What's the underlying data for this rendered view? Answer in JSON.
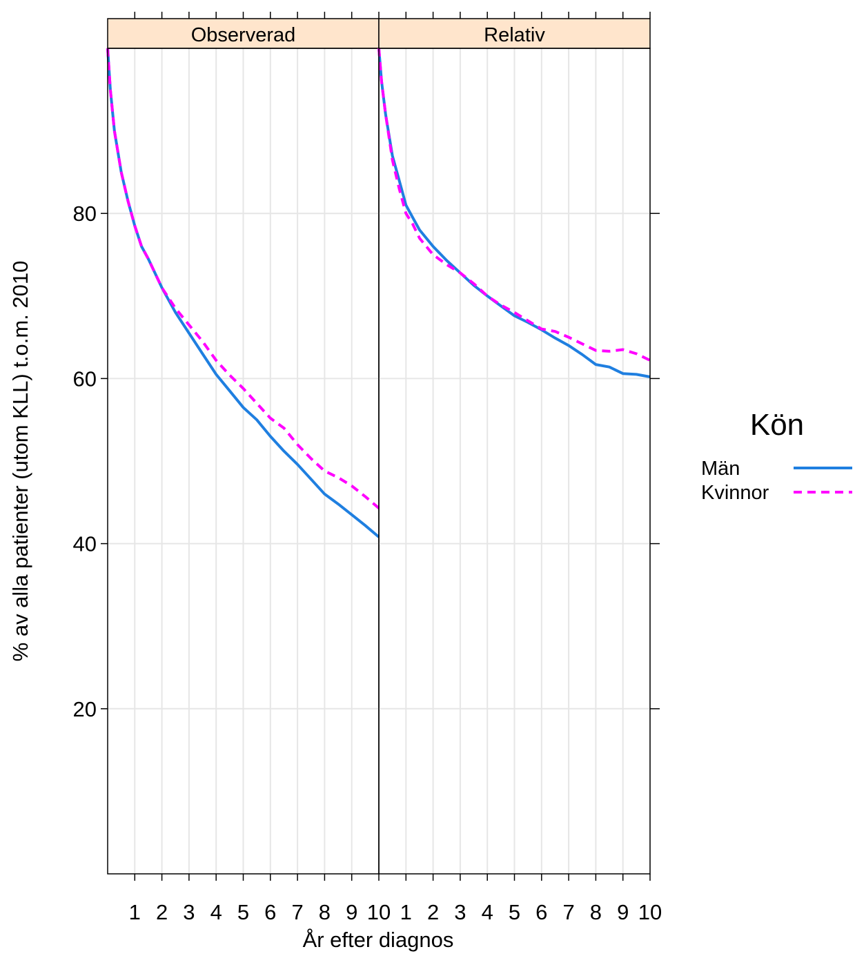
{
  "chart_data": {
    "type": "line",
    "ylabel": "% av alla patienter (utom KLL) t.o.m. 2010",
    "xlabel": "År efter diagnos",
    "xlim": [
      0,
      10
    ],
    "ylim": [
      0,
      100
    ],
    "x_ticks": [
      "1",
      "2",
      "3",
      "4",
      "5",
      "6",
      "7",
      "8",
      "9",
      "10"
    ],
    "y_ticks": [
      "20",
      "40",
      "60",
      "80"
    ],
    "grid": true,
    "legend": {
      "title": "Kön",
      "placement": "right",
      "entries": [
        {
          "label": "Män",
          "color": "#1F7FE0",
          "style": "solid"
        },
        {
          "label": "Kvinnor",
          "color": "#FF00FF",
          "style": "dashed"
        }
      ]
    },
    "panels": [
      {
        "title": "Observerad",
        "series": [
          {
            "name": "Män",
            "color": "#1F7FE0",
            "style": "solid",
            "x": [
              0,
              0.1,
              0.25,
              0.5,
              0.75,
              1,
              1.25,
              1.5,
              2,
              2.5,
              3,
              3.5,
              4,
              4.5,
              5,
              5.5,
              6,
              6.5,
              7,
              7.5,
              8,
              8.5,
              9,
              9.5,
              10
            ],
            "y": [
              100,
              95,
              90,
              85,
              81.5,
              78.5,
              76,
              74.5,
              71,
              68,
              65.5,
              63,
              60.5,
              58.5,
              56.5,
              55,
              53,
              51.2,
              49.6,
              47.8,
              46,
              44.8,
              43.5,
              42.2,
              40.8
            ]
          },
          {
            "name": "Kvinnor",
            "color": "#FF00FF",
            "style": "dashed",
            "x": [
              0,
              0.1,
              0.25,
              0.5,
              0.75,
              1,
              1.25,
              1.5,
              2,
              2.5,
              3,
              3.5,
              4,
              4.5,
              5,
              5.5,
              6,
              6.5,
              7,
              7.5,
              8,
              8.5,
              9,
              9.5,
              10
            ],
            "y": [
              100,
              95,
              90,
              85,
              81.5,
              78.5,
              76,
              74.5,
              71,
              68.5,
              66.5,
              64.5,
              62.2,
              60.4,
              58.8,
              57,
              55.2,
              54,
              52,
              50.3,
              48.8,
              48,
              47,
              45.7,
              44.3
            ]
          }
        ]
      },
      {
        "title": "Relativ",
        "series": [
          {
            "name": "Män",
            "color": "#1F7FE0",
            "style": "solid",
            "x": [
              0,
              0.1,
              0.25,
              0.5,
              0.75,
              1,
              1.25,
              1.5,
              2,
              2.5,
              3,
              3.5,
              4,
              4.5,
              5,
              5.5,
              6,
              6.5,
              7,
              7.5,
              8,
              8.5,
              9,
              9.5,
              10
            ],
            "y": [
              100,
              96,
              92,
              87,
              84,
              81,
              79.5,
              78,
              76,
              74.3,
              72.8,
              71.3,
              70,
              68.8,
              67.6,
              66.8,
              65.9,
              64.9,
              64,
              62.9,
              61.7,
              61.4,
              60.6,
              60.5,
              60.2
            ]
          },
          {
            "name": "Kvinnor",
            "color": "#FF00FF",
            "style": "dashed",
            "x": [
              0,
              0.1,
              0.25,
              0.5,
              0.75,
              1,
              1.25,
              1.5,
              2,
              2.5,
              3,
              3.5,
              4,
              4.5,
              5,
              5.5,
              6,
              6.5,
              7,
              7.5,
              8,
              8.5,
              9,
              9.5,
              10
            ],
            "y": [
              100,
              96,
              92,
              86.5,
              83,
              80,
              78.7,
              77,
              75,
              73.8,
              72.8,
              71.5,
              70,
              68.9,
              68,
              67,
              66,
              65.7,
              65,
              64.2,
              63.4,
              63.3,
              63.5,
              63,
              62.2
            ]
          }
        ]
      }
    ]
  }
}
